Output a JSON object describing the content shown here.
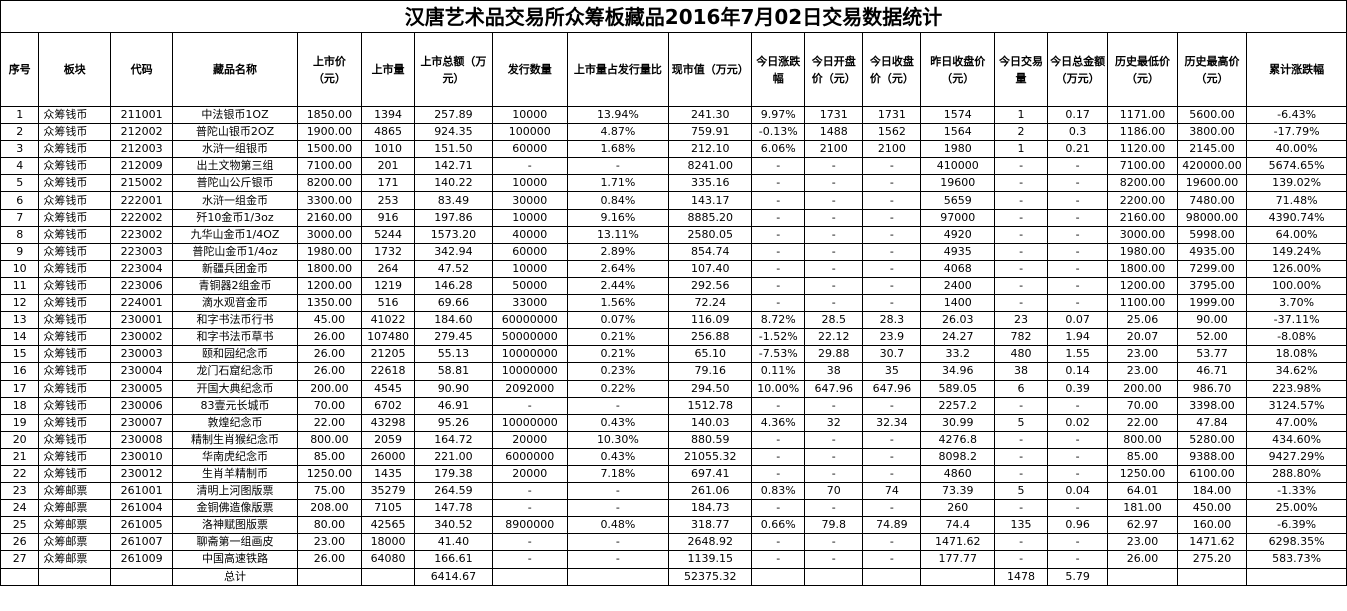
{
  "title": "汉唐艺术品交易所众筹板藏品2016年7月02日交易数据统计",
  "headers": [
    "序号",
    "板块",
    "代码",
    "藏品名称",
    "上市价（元）",
    "上市量",
    "上市总额（万元）",
    "发行数量",
    "上市量占发行量比",
    "现市值（万元）",
    "今日涨跌幅",
    "今日开盘价（元）",
    "今日收盘价（元）",
    "昨日收盘价（元）",
    "今日交易量",
    "今日总金额（万元）",
    "历史最低价（元）",
    "历史最高价（元）",
    "累计涨跌幅"
  ],
  "rows": [
    [
      "1",
      "众筹钱币",
      "211001",
      "中法银币1OZ",
      "1850.00",
      "1394",
      "257.89",
      "10000",
      "13.94%",
      "241.30",
      "9.97%",
      "1731",
      "1731",
      "1574",
      "1",
      "0.17",
      "1171.00",
      "5600.00",
      "-6.43%"
    ],
    [
      "2",
      "众筹钱币",
      "212002",
      "普陀山银币2OZ",
      "1900.00",
      "4865",
      "924.35",
      "100000",
      "4.87%",
      "759.91",
      "-0.13%",
      "1488",
      "1562",
      "1564",
      "2",
      "0.3",
      "1186.00",
      "3800.00",
      "-17.79%"
    ],
    [
      "3",
      "众筹钱币",
      "212003",
      "水浒一组银币",
      "1500.00",
      "1010",
      "151.50",
      "60000",
      "1.68%",
      "212.10",
      "6.06%",
      "2100",
      "2100",
      "1980",
      "1",
      "0.21",
      "1120.00",
      "2145.00",
      "40.00%"
    ],
    [
      "4",
      "众筹钱币",
      "212009",
      "出土文物第三组",
      "7100.00",
      "201",
      "142.71",
      "-",
      "-",
      "8241.00",
      "-",
      "-",
      "-",
      "410000",
      "-",
      "-",
      "7100.00",
      "420000.00",
      "5674.65%"
    ],
    [
      "5",
      "众筹钱币",
      "215002",
      "普陀山公斤银币",
      "8200.00",
      "171",
      "140.22",
      "10000",
      "1.71%",
      "335.16",
      "-",
      "-",
      "-",
      "19600",
      "-",
      "-",
      "8200.00",
      "19600.00",
      "139.02%"
    ],
    [
      "6",
      "众筹钱币",
      "222001",
      "水浒一组金币",
      "3300.00",
      "253",
      "83.49",
      "30000",
      "0.84%",
      "143.17",
      "-",
      "-",
      "-",
      "5659",
      "-",
      "-",
      "2200.00",
      "7480.00",
      "71.48%"
    ],
    [
      "7",
      "众筹钱币",
      "222002",
      "歼10金币1/3oz",
      "2160.00",
      "916",
      "197.86",
      "10000",
      "9.16%",
      "8885.20",
      "-",
      "-",
      "-",
      "97000",
      "-",
      "-",
      "2160.00",
      "98000.00",
      "4390.74%"
    ],
    [
      "8",
      "众筹钱币",
      "223002",
      "九华山金币1/4OZ",
      "3000.00",
      "5244",
      "1573.20",
      "40000",
      "13.11%",
      "2580.05",
      "-",
      "-",
      "-",
      "4920",
      "-",
      "-",
      "3000.00",
      "5998.00",
      "64.00%"
    ],
    [
      "9",
      "众筹钱币",
      "223003",
      "普陀山金币1/4oz",
      "1980.00",
      "1732",
      "342.94",
      "60000",
      "2.89%",
      "854.74",
      "-",
      "-",
      "-",
      "4935",
      "-",
      "-",
      "1980.00",
      "4935.00",
      "149.24%"
    ],
    [
      "10",
      "众筹钱币",
      "223004",
      "新疆兵团金币",
      "1800.00",
      "264",
      "47.52",
      "10000",
      "2.64%",
      "107.40",
      "-",
      "-",
      "-",
      "4068",
      "-",
      "-",
      "1800.00",
      "7299.00",
      "126.00%"
    ],
    [
      "11",
      "众筹钱币",
      "223006",
      "青铜器2组金币",
      "1200.00",
      "1219",
      "146.28",
      "50000",
      "2.44%",
      "292.56",
      "-",
      "-",
      "-",
      "2400",
      "-",
      "-",
      "1200.00",
      "3795.00",
      "100.00%"
    ],
    [
      "12",
      "众筹钱币",
      "224001",
      "滴水观音金币",
      "1350.00",
      "516",
      "69.66",
      "33000",
      "1.56%",
      "72.24",
      "-",
      "-",
      "-",
      "1400",
      "-",
      "-",
      "1100.00",
      "1999.00",
      "3.70%"
    ],
    [
      "13",
      "众筹钱币",
      "230001",
      "和字书法币行书",
      "45.00",
      "41022",
      "184.60",
      "60000000",
      "0.07%",
      "116.09",
      "8.72%",
      "28.5",
      "28.3",
      "26.03",
      "23",
      "0.07",
      "25.06",
      "90.00",
      "-37.11%"
    ],
    [
      "14",
      "众筹钱币",
      "230002",
      "和字书法币草书",
      "26.00",
      "107480",
      "279.45",
      "50000000",
      "0.21%",
      "256.88",
      "-1.52%",
      "22.12",
      "23.9",
      "24.27",
      "782",
      "1.94",
      "20.07",
      "52.00",
      "-8.08%"
    ],
    [
      "15",
      "众筹钱币",
      "230003",
      "颐和园纪念币",
      "26.00",
      "21205",
      "55.13",
      "10000000",
      "0.21%",
      "65.10",
      "-7.53%",
      "29.88",
      "30.7",
      "33.2",
      "480",
      "1.55",
      "23.00",
      "53.77",
      "18.08%"
    ],
    [
      "16",
      "众筹钱币",
      "230004",
      "龙门石窟纪念币",
      "26.00",
      "22618",
      "58.81",
      "10000000",
      "0.23%",
      "79.16",
      "0.11%",
      "38",
      "35",
      "34.96",
      "38",
      "0.14",
      "23.00",
      "46.71",
      "34.62%"
    ],
    [
      "17",
      "众筹钱币",
      "230005",
      "开国大典纪念币",
      "200.00",
      "4545",
      "90.90",
      "2092000",
      "0.22%",
      "294.50",
      "10.00%",
      "647.96",
      "647.96",
      "589.05",
      "6",
      "0.39",
      "200.00",
      "986.70",
      "223.98%"
    ],
    [
      "18",
      "众筹钱币",
      "230006",
      "83壹元长城币",
      "70.00",
      "6702",
      "46.91",
      "-",
      "-",
      "1512.78",
      "-",
      "-",
      "-",
      "2257.2",
      "-",
      "-",
      "70.00",
      "3398.00",
      "3124.57%"
    ],
    [
      "19",
      "众筹钱币",
      "230007",
      "敦煌纪念币",
      "22.00",
      "43298",
      "95.26",
      "10000000",
      "0.43%",
      "140.03",
      "4.36%",
      "32",
      "32.34",
      "30.99",
      "5",
      "0.02",
      "22.00",
      "47.84",
      "47.00%"
    ],
    [
      "20",
      "众筹钱币",
      "230008",
      "精制生肖猴纪念币",
      "800.00",
      "2059",
      "164.72",
      "20000",
      "10.30%",
      "880.59",
      "-",
      "-",
      "-",
      "4276.8",
      "-",
      "-",
      "800.00",
      "5280.00",
      "434.60%"
    ],
    [
      "21",
      "众筹钱币",
      "230010",
      "华南虎纪念币",
      "85.00",
      "26000",
      "221.00",
      "6000000",
      "0.43%",
      "21055.32",
      "-",
      "-",
      "-",
      "8098.2",
      "-",
      "-",
      "85.00",
      "9388.00",
      "9427.29%"
    ],
    [
      "22",
      "众筹钱币",
      "230012",
      "生肖羊精制币",
      "1250.00",
      "1435",
      "179.38",
      "20000",
      "7.18%",
      "697.41",
      "-",
      "-",
      "-",
      "4860",
      "-",
      "-",
      "1250.00",
      "6100.00",
      "288.80%"
    ],
    [
      "23",
      "众筹邮票",
      "261001",
      "清明上河图版票",
      "75.00",
      "35279",
      "264.59",
      "-",
      "-",
      "261.06",
      "0.83%",
      "70",
      "74",
      "73.39",
      "5",
      "0.04",
      "64.01",
      "184.00",
      "-1.33%"
    ],
    [
      "24",
      "众筹邮票",
      "261004",
      "金铜佛造像版票",
      "208.00",
      "7105",
      "147.78",
      "-",
      "-",
      "184.73",
      "-",
      "-",
      "-",
      "260",
      "-",
      "-",
      "181.00",
      "450.00",
      "25.00%"
    ],
    [
      "25",
      "众筹邮票",
      "261005",
      "洛神赋图版票",
      "80.00",
      "42565",
      "340.52",
      "8900000",
      "0.48%",
      "318.77",
      "0.66%",
      "79.8",
      "74.89",
      "74.4",
      "135",
      "0.96",
      "62.97",
      "160.00",
      "-6.39%"
    ],
    [
      "26",
      "众筹邮票",
      "261007",
      "聊斋第一组画皮",
      "23.00",
      "18000",
      "41.40",
      "-",
      "-",
      "2648.92",
      "-",
      "-",
      "-",
      "1471.62",
      "-",
      "-",
      "23.00",
      "1471.62",
      "6298.35%"
    ],
    [
      "27",
      "众筹邮票",
      "261009",
      "中国高速铁路",
      "26.00",
      "64080",
      "166.61",
      "-",
      "-",
      "1139.15",
      "-",
      "-",
      "-",
      "177.77",
      "-",
      "-",
      "26.00",
      "275.20",
      "583.73%"
    ]
  ],
  "total": {
    "label": "总计",
    "listing_total": "6414.67",
    "market_value": "52375.32",
    "volume": "1478",
    "amount": "5.79"
  }
}
